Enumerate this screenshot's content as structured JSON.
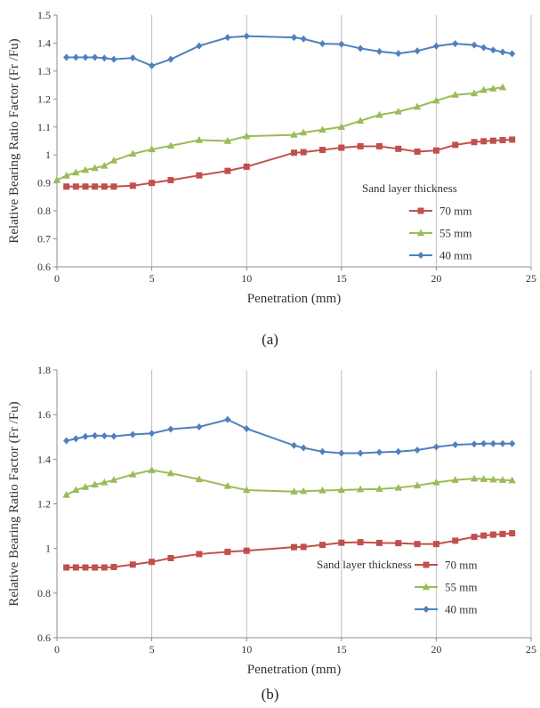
{
  "chart_data": [
    {
      "type": "line",
      "caption": "(a)",
      "xlabel": "Penetration (mm)",
      "ylabel": "Relative Bearing Ratio Factor (Fr /Fu)",
      "xlim": [
        0,
        25
      ],
      "ylim": [
        0.6,
        1.5
      ],
      "xticks": [
        0,
        5,
        10,
        15,
        20,
        25
      ],
      "yticks": [
        0.6,
        0.7,
        0.8,
        0.9,
        1,
        1.1,
        1.2,
        1.3,
        1.4,
        1.5
      ],
      "grid": "vertical",
      "legend_title": "Sand layer thickness",
      "legend_position": "bottom-right",
      "series": [
        {
          "name": "70 mm",
          "color": "#c0504d",
          "marker": "square",
          "x": [
            0.5,
            1,
            1.5,
            2,
            2.5,
            3,
            4,
            5,
            6,
            7.5,
            9,
            10,
            12.5,
            13,
            14,
            15,
            16,
            17,
            18,
            19,
            20,
            21,
            22,
            22.5,
            23,
            23.5,
            24
          ],
          "y": [
            0.887,
            0.887,
            0.887,
            0.887,
            0.887,
            0.887,
            0.89,
            0.9,
            0.91,
            0.927,
            0.943,
            0.958,
            1.008,
            1.01,
            1.018,
            1.026,
            1.031,
            1.031,
            1.022,
            1.012,
            1.016,
            1.036,
            1.046,
            1.049,
            1.051,
            1.053,
            1.055
          ]
        },
        {
          "name": "55 mm",
          "color": "#9bbb59",
          "marker": "triangle",
          "x": [
            0,
            0.5,
            1,
            1.5,
            2,
            2.5,
            3,
            4,
            5,
            6,
            7.5,
            9,
            10,
            12.5,
            13,
            14,
            15,
            16,
            17,
            18,
            19,
            20,
            21,
            22,
            22.5,
            23,
            23.5
          ],
          "y": [
            0.91,
            0.926,
            0.937,
            0.946,
            0.953,
            0.961,
            0.98,
            1.004,
            1.02,
            1.033,
            1.053,
            1.05,
            1.067,
            1.072,
            1.08,
            1.09,
            1.1,
            1.122,
            1.143,
            1.155,
            1.172,
            1.194,
            1.215,
            1.22,
            1.232,
            1.237,
            1.242
          ]
        },
        {
          "name": "40 mm",
          "color": "#4f81bd",
          "marker": "diamond",
          "x": [
            0.5,
            1,
            1.5,
            2,
            2.5,
            3,
            4,
            5,
            6,
            7.5,
            9,
            10,
            12.5,
            13,
            14,
            15,
            16,
            17,
            18,
            19,
            20,
            21,
            22,
            22.5,
            23,
            23.5,
            24
          ],
          "y": [
            1.349,
            1.349,
            1.349,
            1.349,
            1.346,
            1.342,
            1.347,
            1.319,
            1.342,
            1.39,
            1.42,
            1.425,
            1.42,
            1.415,
            1.398,
            1.396,
            1.381,
            1.37,
            1.363,
            1.372,
            1.389,
            1.398,
            1.393,
            1.384,
            1.375,
            1.368,
            1.362
          ]
        }
      ]
    },
    {
      "type": "line",
      "caption": "(b)",
      "xlabel": "Penetration (mm)",
      "ylabel": "Relative Bearing Ratio Factor (Fr /Fu)",
      "xlim": [
        0,
        25
      ],
      "ylim": [
        0.6,
        1.8
      ],
      "xticks": [
        0,
        5,
        10,
        15,
        20,
        25
      ],
      "yticks": [
        0.6,
        0.8,
        1,
        1.2,
        1.4,
        1.6,
        1.8
      ],
      "grid": "vertical",
      "legend_title": "Sand layer thickness",
      "legend_position": "bottom-right",
      "series": [
        {
          "name": "70 mm",
          "color": "#c0504d",
          "marker": "square",
          "x": [
            0.5,
            1,
            1.5,
            2,
            2.5,
            3,
            4,
            5,
            6,
            7.5,
            9,
            10,
            12.5,
            13,
            14,
            15,
            16,
            17,
            18,
            19,
            20,
            21,
            22,
            22.5,
            23,
            23.5,
            24
          ],
          "y": [
            0.915,
            0.915,
            0.915,
            0.915,
            0.915,
            0.917,
            0.928,
            0.94,
            0.957,
            0.975,
            0.985,
            0.99,
            1.006,
            1.007,
            1.016,
            1.026,
            1.028,
            1.025,
            1.024,
            1.02,
            1.02,
            1.035,
            1.052,
            1.058,
            1.062,
            1.065,
            1.068
          ]
        },
        {
          "name": "55 mm",
          "color": "#9bbb59",
          "marker": "triangle",
          "x": [
            0.5,
            1,
            1.5,
            2,
            2.5,
            3,
            4,
            5,
            6,
            7.5,
            9,
            10,
            12.5,
            13,
            14,
            15,
            16,
            17,
            18,
            19,
            20,
            21,
            22,
            22.5,
            23,
            23.5,
            24
          ],
          "y": [
            1.24,
            1.262,
            1.275,
            1.286,
            1.296,
            1.307,
            1.332,
            1.351,
            1.337,
            1.31,
            1.28,
            1.262,
            1.255,
            1.257,
            1.26,
            1.262,
            1.265,
            1.267,
            1.272,
            1.282,
            1.296,
            1.307,
            1.313,
            1.311,
            1.309,
            1.307,
            1.305
          ]
        },
        {
          "name": "40 mm",
          "color": "#4f81bd",
          "marker": "diamond",
          "x": [
            0.5,
            1,
            1.5,
            2,
            2.5,
            3,
            4,
            5,
            6,
            7.5,
            9,
            10,
            12.5,
            13,
            14,
            15,
            16,
            17,
            18,
            19,
            20,
            21,
            22,
            22.5,
            23,
            23.5,
            24
          ],
          "y": [
            1.483,
            1.492,
            1.502,
            1.506,
            1.505,
            1.503,
            1.511,
            1.516,
            1.535,
            1.545,
            1.578,
            1.537,
            1.462,
            1.451,
            1.434,
            1.427,
            1.427,
            1.431,
            1.434,
            1.441,
            1.455,
            1.465,
            1.468,
            1.47,
            1.47,
            1.47,
            1.47
          ]
        }
      ]
    }
  ]
}
